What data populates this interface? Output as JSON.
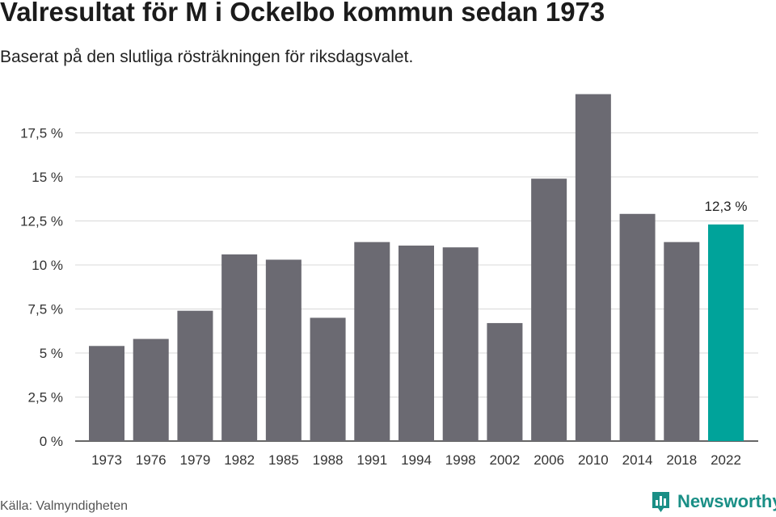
{
  "header": {
    "title": "Valresultat för M i Ockelbo kommun sedan 1973",
    "subtitle": "Baserat på den slutliga rösträkningen för riksdagsvalet."
  },
  "footer": {
    "source": "Källa: Valmyndigheten",
    "brand": "Newsworthy",
    "brand_icon": "bar-chart-logo-icon"
  },
  "colors": {
    "bar": "#6b6a72",
    "highlight": "#00a39a",
    "grid": "#d9d9d9",
    "brand": "#1a8f86"
  },
  "chart_data": {
    "type": "bar",
    "title": "Valresultat för M i Ockelbo kommun sedan 1973",
    "subtitle": "Baserat på den slutliga rösträkningen för riksdagsvalet.",
    "categories": [
      "1973",
      "1976",
      "1979",
      "1982",
      "1985",
      "1988",
      "1991",
      "1994",
      "1998",
      "2002",
      "2006",
      "2010",
      "2014",
      "2018",
      "2022"
    ],
    "values": [
      5.4,
      5.8,
      7.4,
      10.6,
      10.3,
      7.0,
      11.3,
      11.1,
      11.0,
      6.7,
      14.9,
      19.7,
      12.9,
      11.3,
      12.3
    ],
    "ylim": [
      0,
      20
    ],
    "yticks": [
      0,
      2.5,
      5,
      7.5,
      10,
      12.5,
      15,
      17.5
    ],
    "ytick_labels": [
      "0 %",
      "2,5 %",
      "5 %",
      "7,5 %",
      "10 %",
      "12,5 %",
      "15 %",
      "17,5 %"
    ],
    "highlight_index": 14,
    "data_labels": [
      {
        "index": 14,
        "text": "12,3 %"
      }
    ],
    "grid": true,
    "xlabel": "",
    "ylabel": ""
  }
}
